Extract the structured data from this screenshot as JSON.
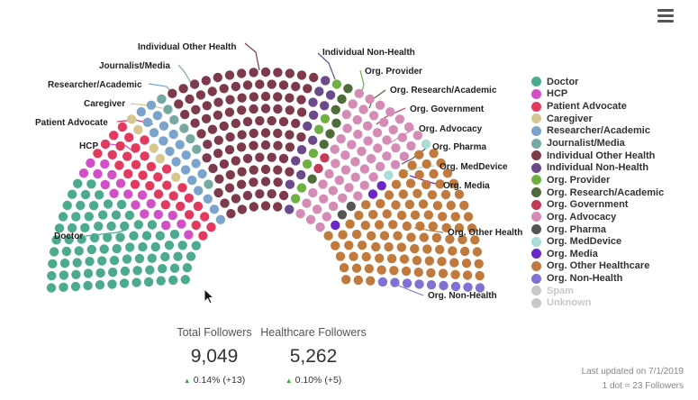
{
  "menu_icon": "hamburger-menu-icon",
  "chart_data": {
    "type": "parliament",
    "dot_value": 23,
    "series": [
      {
        "name": "Doctor",
        "color": "#4caa8e",
        "dots": 49
      },
      {
        "name": "HCP",
        "color": "#d150c6",
        "dots": 11
      },
      {
        "name": "Patient Advocate",
        "color": "#e23a5e",
        "dots": 20
      },
      {
        "name": "Caregiver",
        "color": "#d8c690",
        "dots": 3
      },
      {
        "name": "Researcher/Academic",
        "color": "#7ba4cc",
        "dots": 12
      },
      {
        "name": "Journalist/Media",
        "color": "#75a9a1",
        "dots": 4
      },
      {
        "name": "Individual Other Health",
        "color": "#7d3a4a",
        "dots": 62
      },
      {
        "name": "Individual Non-Health",
        "color": "#6a4a8a",
        "dots": 8
      },
      {
        "name": "Org. Provider",
        "color": "#6fb043",
        "dots": 4
      },
      {
        "name": "Org. Research/Academic",
        "color": "#4e6b3a",
        "dots": 4
      },
      {
        "name": "Org. Government",
        "color": "#c53a57",
        "dots": 1
      },
      {
        "name": "Org. Advocacy",
        "color": "#d48bb6",
        "dots": 34
      },
      {
        "name": "Org. Pharma",
        "color": "#555555",
        "dots": 1
      },
      {
        "name": "Org. MedDevice",
        "color": "#a8ded7",
        "dots": 1
      },
      {
        "name": "Org. Media",
        "color": "#6a26c9",
        "dots": 2
      },
      {
        "name": "Org. Other Healthcare",
        "color": "#c07a3e",
        "dots": 59
      },
      {
        "name": "Org. Non-Health",
        "color": "#7f72d3",
        "dots": 6
      },
      {
        "name": "Spam",
        "color": "#c8c8c8",
        "dots": 0,
        "disabled": true
      },
      {
        "name": "Unknown",
        "color": "#c8c8c8",
        "dots": 0,
        "disabled": true
      }
    ]
  },
  "stats": {
    "total": {
      "label": "Total Followers",
      "value": "9,049",
      "change": "0.14% (+13)"
    },
    "healthcare": {
      "label": "Healthcare Followers",
      "value": "5,262",
      "change": "0.10% (+5)"
    }
  },
  "footer": {
    "updated": "Last updated on 7/1/2019",
    "dot_note": "1 dot = 23 Followers"
  }
}
